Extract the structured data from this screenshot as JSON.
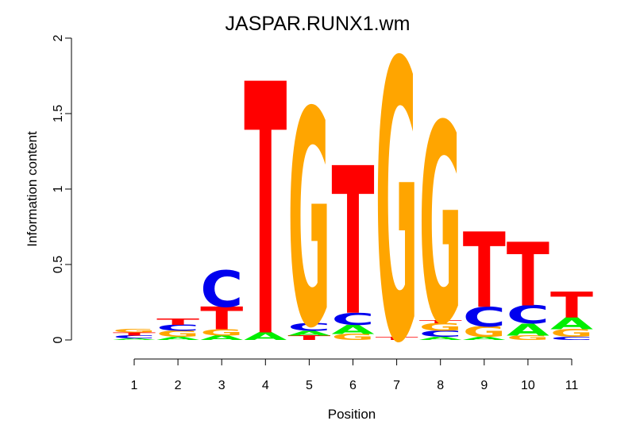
{
  "chart_data": {
    "type": "sequence-logo",
    "title": "JASPAR.RUNX1.wm",
    "xlabel": "Position",
    "ylabel": "Information content",
    "ylim": [
      0,
      2
    ],
    "y_ticks": [
      {
        "value": 0,
        "label": "0"
      },
      {
        "value": 0.5,
        "label": "0.5"
      },
      {
        "value": 1,
        "label": "1"
      },
      {
        "value": 1.5,
        "label": "1.5"
      },
      {
        "value": 2,
        "label": "2"
      }
    ],
    "positions": [
      "1",
      "2",
      "3",
      "4",
      "5",
      "6",
      "7",
      "8",
      "9",
      "10",
      "11"
    ],
    "colors": {
      "A": "#00ee00",
      "C": "#0000ee",
      "G": "#ffa500",
      "T": "#ff0000"
    },
    "stacks": [
      [
        {
          "base": "A",
          "height": 0.01
        },
        {
          "base": "C",
          "height": 0.02
        },
        {
          "base": "T",
          "height": 0.02
        },
        {
          "base": "G",
          "height": 0.025
        }
      ],
      [
        {
          "base": "A",
          "height": 0.02
        },
        {
          "base": "G",
          "height": 0.04
        },
        {
          "base": "C",
          "height": 0.04
        },
        {
          "base": "T",
          "height": 0.04
        }
      ],
      [
        {
          "base": "A",
          "height": 0.03
        },
        {
          "base": "G",
          "height": 0.04
        },
        {
          "base": "T",
          "height": 0.15
        },
        {
          "base": "C",
          "height": 0.24
        }
      ],
      [
        {
          "base": "A",
          "height": 0.05
        },
        {
          "base": "T",
          "height": 1.67
        }
      ],
      [
        {
          "base": "T",
          "height": 0.03
        },
        {
          "base": "A",
          "height": 0.03
        },
        {
          "base": "C",
          "height": 0.05
        },
        {
          "base": "G",
          "height": 1.43
        }
      ],
      [
        {
          "base": "G",
          "height": 0.04
        },
        {
          "base": "A",
          "height": 0.06
        },
        {
          "base": "C",
          "height": 0.08
        },
        {
          "base": "T",
          "height": 0.98
        }
      ],
      [
        {
          "base": "T",
          "height": 0.02
        },
        {
          "base": "G",
          "height": 1.85
        }
      ],
      [
        {
          "base": "A",
          "height": 0.02
        },
        {
          "base": "C",
          "height": 0.04
        },
        {
          "base": "G",
          "height": 0.05
        },
        {
          "base": "T",
          "height": 0.02
        },
        {
          "base": "G",
          "height": 1.32
        }
      ],
      [
        {
          "base": "A",
          "height": 0.02
        },
        {
          "base": "G",
          "height": 0.07
        },
        {
          "base": "C",
          "height": 0.13
        },
        {
          "base": "T",
          "height": 0.5
        }
      ],
      [
        {
          "base": "G",
          "height": 0.03
        },
        {
          "base": "A",
          "height": 0.08
        },
        {
          "base": "C",
          "height": 0.12
        },
        {
          "base": "T",
          "height": 0.42
        }
      ],
      [
        {
          "base": "C",
          "height": 0.02
        },
        {
          "base": "G",
          "height": 0.05
        },
        {
          "base": "A",
          "height": 0.08
        },
        {
          "base": "T",
          "height": 0.17
        }
      ]
    ]
  }
}
